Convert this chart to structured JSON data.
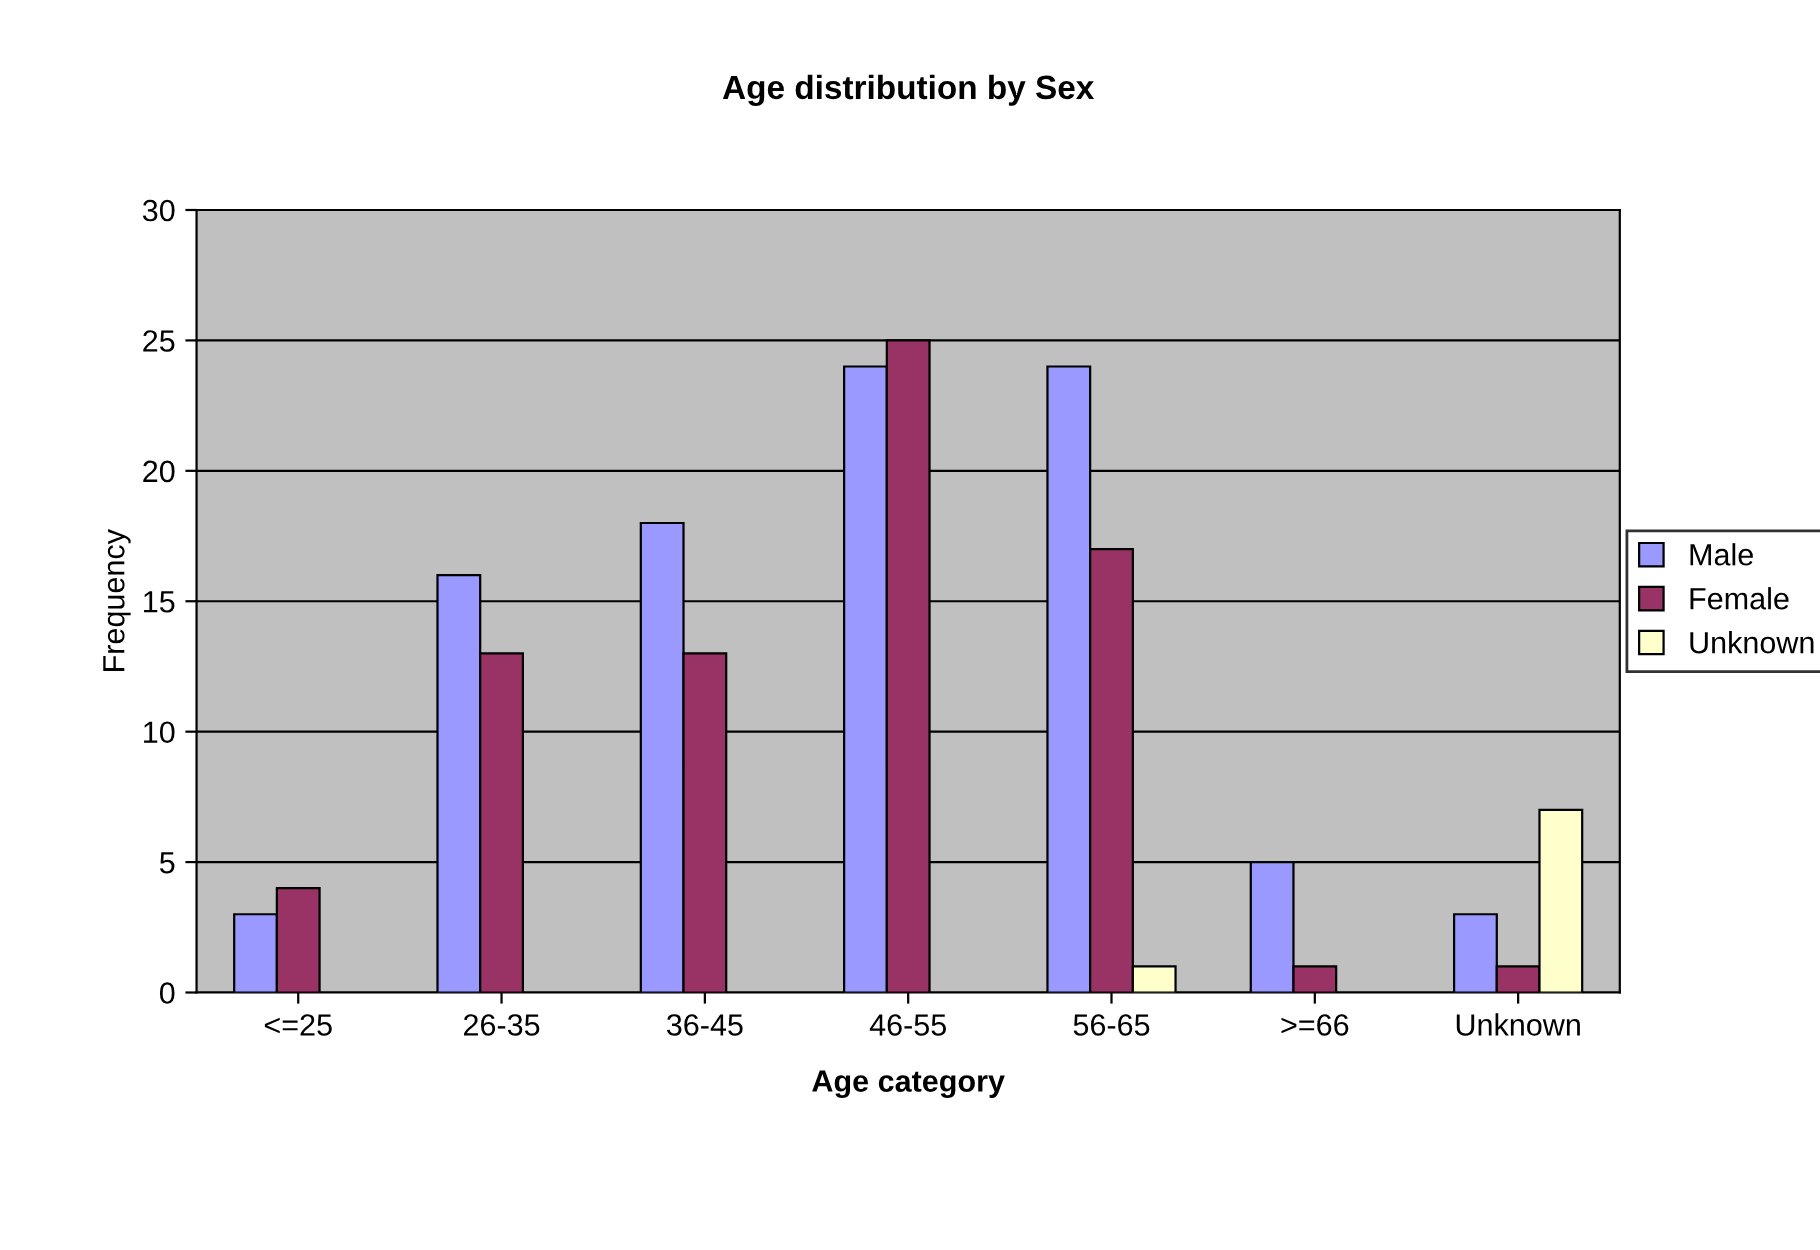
{
  "chart_data": {
    "type": "bar",
    "title": "Age distribution by Sex",
    "xlabel": "Age category",
    "ylabel": "Frequency",
    "categories": [
      "<=25",
      "26-35",
      "36-45",
      "46-55",
      "56-65",
      ">=66",
      "Unknown"
    ],
    "series": [
      {
        "name": "Male",
        "color": "#9999ff",
        "values": [
          3,
          16,
          18,
          24,
          24,
          5,
          3
        ]
      },
      {
        "name": "Female",
        "color": "#993366",
        "values": [
          4,
          13,
          13,
          25,
          17,
          1,
          1
        ]
      },
      {
        "name": "Unknown",
        "color": "#ffffcc",
        "values": [
          null,
          null,
          null,
          null,
          1,
          null,
          7
        ]
      }
    ],
    "ylim": [
      0,
      30
    ],
    "yticks": [
      0,
      5,
      10,
      15,
      20,
      25,
      30
    ],
    "grid": "y",
    "legend": "right"
  }
}
